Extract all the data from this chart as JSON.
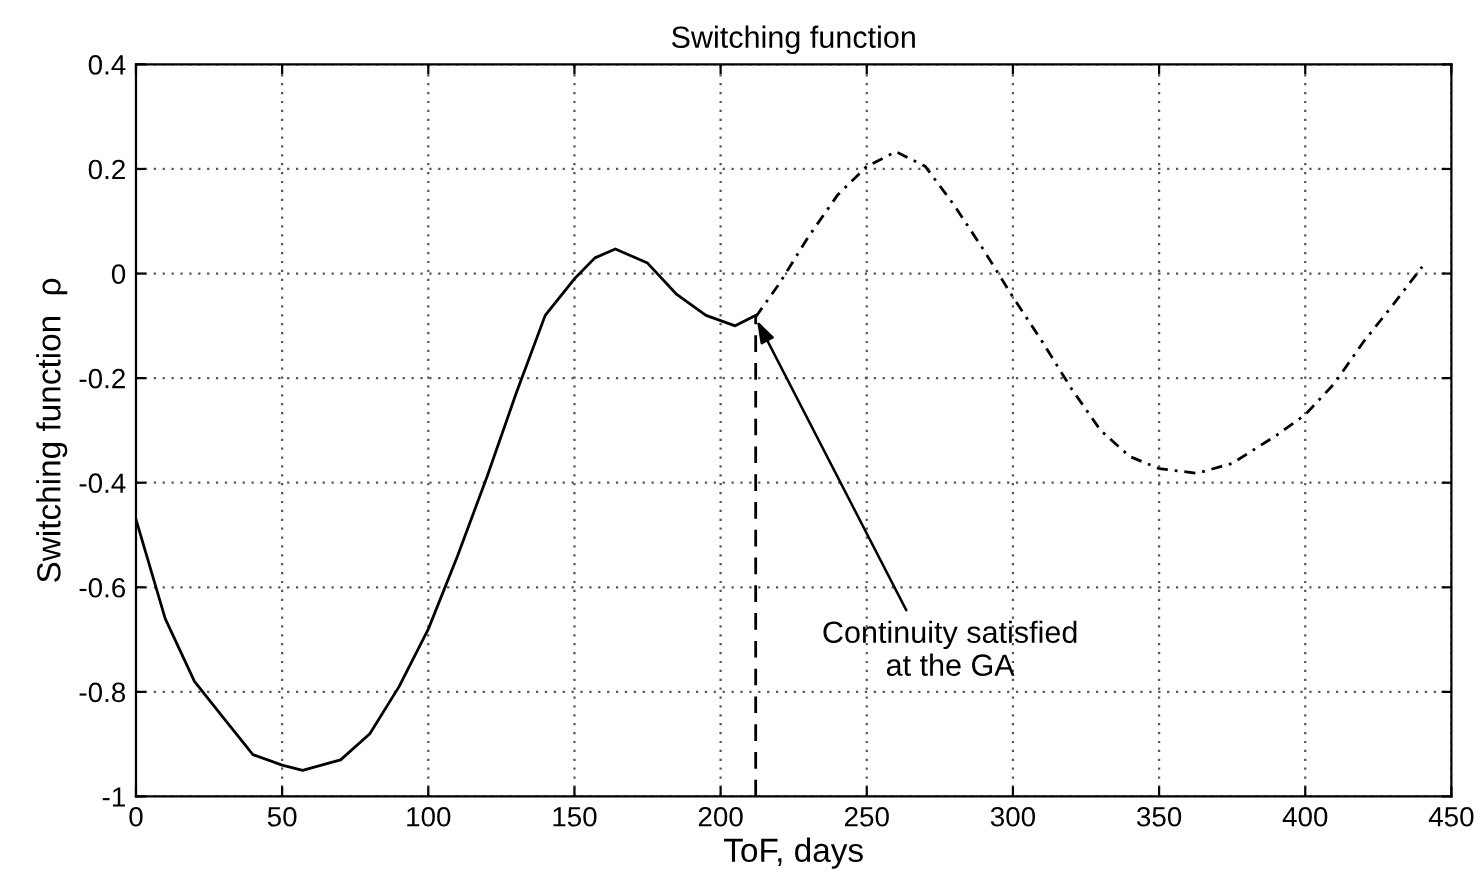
{
  "chart_data": {
    "type": "line",
    "title": "Switching function",
    "xlabel": "ToF, days",
    "ylabel": "Switching function  ρ",
    "xlim": [
      0,
      450
    ],
    "xticks": [
      0,
      50,
      100,
      150,
      200,
      250,
      300,
      350,
      400,
      450
    ],
    "ylim": [
      -1,
      0.4
    ],
    "yticks": [
      -1,
      -0.8,
      -0.6,
      -0.4,
      -0.2,
      0,
      0.2,
      0.4
    ],
    "grid": true,
    "marker": "none",
    "series": [
      {
        "color": "#000000",
        "line_style": "solid",
        "x": [
          0,
          10,
          20,
          30,
          40,
          50,
          57,
          70,
          80,
          90,
          100,
          110,
          120,
          130,
          140,
          150,
          157,
          164,
          175,
          185,
          195,
          205,
          212
        ],
        "values": [
          -0.47,
          -0.66,
          -0.78,
          -0.85,
          -0.92,
          -0.94,
          -0.95,
          -0.93,
          -0.88,
          -0.79,
          -0.68,
          -0.54,
          -0.39,
          -0.23,
          -0.08,
          -0.01,
          0.03,
          0.047,
          0.02,
          -0.04,
          -0.08,
          -0.1,
          -0.08
        ]
      },
      {
        "color": "#000000",
        "line_style": "dashdot",
        "x": [
          212,
          220,
          230,
          240,
          250,
          260,
          270,
          280,
          290,
          300,
          310,
          320,
          330,
          340,
          350,
          363,
          375,
          390,
          400,
          410,
          420,
          430,
          440
        ],
        "values": [
          -0.083,
          -0.02,
          0.07,
          0.15,
          0.205,
          0.233,
          0.205,
          0.13,
          0.045,
          -0.045,
          -0.13,
          -0.22,
          -0.3,
          -0.35,
          -0.373,
          -0.382,
          -0.363,
          -0.31,
          -0.27,
          -0.21,
          -0.13,
          -0.06,
          0.013
        ]
      },
      {
        "color": "#000000",
        "line_style": "dashed",
        "x": [
          212,
          212
        ],
        "values": [
          -1,
          -0.083
        ]
      }
    ],
    "annotations": [
      {
        "text": "Continuity satisfied\nat the GA",
        "x": 212,
        "y": -0.085
      }
    ]
  }
}
